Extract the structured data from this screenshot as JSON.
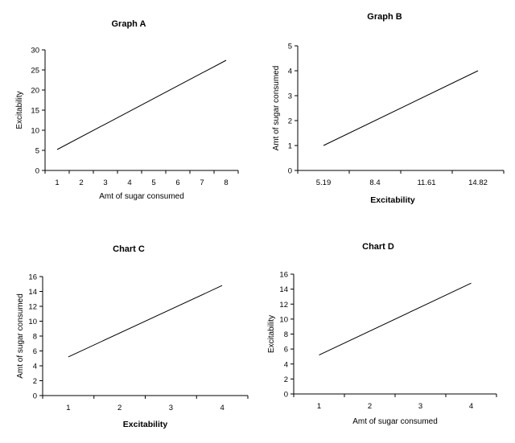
{
  "chart_data": [
    {
      "id": "A",
      "type": "line",
      "title": "Graph A",
      "xlabel": "Amt of sugar consumed",
      "ylabel": "Excitability",
      "x_ticks": [
        "1",
        "2",
        "3",
        "4",
        "5",
        "6",
        "7",
        "8"
      ],
      "y_ticks": [
        "0",
        "5",
        "10",
        "15",
        "20",
        "25",
        "30"
      ],
      "xlim": [
        0.5,
        8.5
      ],
      "ylim": [
        0,
        30
      ],
      "xlabel_bold": false,
      "series": [
        {
          "x": [
            1,
            8
          ],
          "y": [
            5.2,
            27.4
          ]
        }
      ]
    },
    {
      "id": "B",
      "type": "line",
      "title": "Graph B",
      "xlabel": "Excitability",
      "ylabel": "Amt of sugar consumed",
      "x_ticks": [
        "5.19",
        "8.4",
        "11.61",
        "14.82"
      ],
      "y_ticks": [
        "0",
        "1",
        "2",
        "3",
        "4",
        "5"
      ],
      "xlim": [
        0.5,
        4.5
      ],
      "ylim": [
        0,
        5
      ],
      "xlabel_bold": true,
      "series": [
        {
          "x": [
            1,
            4
          ],
          "y": [
            1,
            4
          ]
        }
      ]
    },
    {
      "id": "C",
      "type": "line",
      "title": "Chart C",
      "xlabel": "Excitability",
      "ylabel": "Amt of sugar consumed",
      "x_ticks": [
        "1",
        "2",
        "3",
        "4"
      ],
      "y_ticks": [
        "0",
        "2",
        "4",
        "6",
        "8",
        "10",
        "12",
        "14",
        "16"
      ],
      "xlim": [
        0.5,
        4.5
      ],
      "ylim": [
        0,
        16
      ],
      "xlabel_bold": true,
      "series": [
        {
          "x": [
            1,
            4
          ],
          "y": [
            5.2,
            14.8
          ]
        }
      ]
    },
    {
      "id": "D",
      "type": "line",
      "title": "Chart D",
      "xlabel": "Amt of sugar consumed",
      "ylabel": "Excitability",
      "x_ticks": [
        "1",
        "2",
        "3",
        "4"
      ],
      "y_ticks": [
        "0",
        "2",
        "4",
        "6",
        "8",
        "10",
        "12",
        "14",
        "16"
      ],
      "xlim": [
        0.5,
        4.5
      ],
      "ylim": [
        0,
        16
      ],
      "xlabel_bold": false,
      "series": [
        {
          "x": [
            1,
            4
          ],
          "y": [
            5.2,
            14.8
          ]
        }
      ]
    }
  ]
}
